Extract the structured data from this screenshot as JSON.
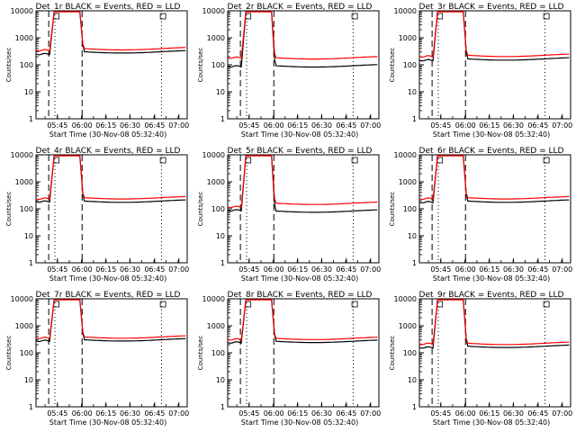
{
  "chart_data": {
    "type": "line",
    "x_ticks": [
      "05:45",
      "06:00",
      "06:15",
      "06:30",
      "06:45",
      "07:00"
    ],
    "y_ticks": [
      "1",
      "10",
      "100",
      "1000",
      "10000"
    ],
    "ylim": [
      1,
      10000
    ],
    "y_scale": "log",
    "xlabel": "Start Time (30-Nov-08 05:32:40)",
    "ylabel": "Counts/sec",
    "series_colors": {
      "events": "#000000",
      "lld": "#ff0000"
    },
    "panels": [
      {
        "title": "Det_1r BLACK = Events, RED = LLD",
        "events": {
          "pre": 270,
          "post": 330
        },
        "lld": {
          "pre": 320,
          "post": 370
        }
      },
      {
        "title": "Det_2r BLACK = Events, RED = LLD",
        "events": {
          "pre": 95,
          "post": 100
        },
        "lld": {
          "pre": 170,
          "post": 170
        }
      },
      {
        "title": "Det_3r BLACK = Events, RED = LLD",
        "events": {
          "pre": 160,
          "post": 180
        },
        "lld": {
          "pre": 190,
          "post": 210
        }
      },
      {
        "title": "Det_4r BLACK = Events, RED = LLD",
        "events": {
          "pre": 200,
          "post": 210
        },
        "lld": {
          "pre": 220,
          "post": 240
        }
      },
      {
        "title": "Det_5r BLACK = Events, RED = LLD",
        "events": {
          "pre": 95,
          "post": 90
        },
        "lld": {
          "pre": 110,
          "post": 150
        }
      },
      {
        "title": "Det_6r BLACK = Events, RED = LLD",
        "events": {
          "pre": 190,
          "post": 210
        },
        "lld": {
          "pre": 220,
          "post": 240
        }
      },
      {
        "title": "Det_7r BLACK = Events, RED = LLD",
        "events": {
          "pre": 300,
          "post": 330
        },
        "lld": {
          "pre": 330,
          "post": 360
        }
      },
      {
        "title": "Det_8r BLACK = Events, RED = LLD",
        "events": {
          "pre": 260,
          "post": 290
        },
        "lld": {
          "pre": 290,
          "post": 320
        }
      },
      {
        "title": "Det_9r BLACK = Events, RED = LLD",
        "events": {
          "pre": 170,
          "post": 190
        },
        "lld": {
          "pre": 200,
          "post": 210
        }
      }
    ]
  }
}
